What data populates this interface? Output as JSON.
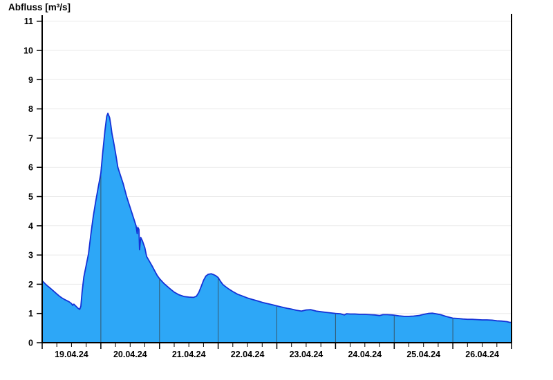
{
  "page": {
    "title": "Abfluss [m³/s]"
  },
  "colors": {
    "background": "#FFFFFF",
    "fill": "#2DA7F7",
    "stroke": "#1432D7",
    "grid": "#EAEAEA",
    "axis": "#000000",
    "day_separator": "#35566A"
  },
  "chart_data": {
    "type": "area",
    "title": "Abfluss [m³/s]",
    "ylabel": "Abfluss [m³/s]",
    "unit": "m³/s",
    "ylim": [
      0,
      11
    ],
    "yticks": [
      0,
      1,
      2,
      3,
      4,
      5,
      6,
      7,
      8,
      9,
      10,
      11
    ],
    "x_range_days": [
      0,
      8
    ],
    "x_days": [
      "19.04.24",
      "20.04.24",
      "21.04.24",
      "22.04.24",
      "23.04.24",
      "24.04.24",
      "25.04.24",
      "26.04.24"
    ],
    "minor_ticks_per_day": 4,
    "grid": "horizontal",
    "legend": "none",
    "day_separators": [
      1,
      2,
      3,
      4,
      5,
      6,
      7
    ],
    "series": [
      {
        "name": "Abfluss",
        "points": [
          [
            0.0,
            2.12
          ],
          [
            0.04,
            2.04
          ],
          [
            0.08,
            1.96
          ],
          [
            0.13,
            1.88
          ],
          [
            0.17,
            1.81
          ],
          [
            0.21,
            1.74
          ],
          [
            0.25,
            1.67
          ],
          [
            0.29,
            1.6
          ],
          [
            0.33,
            1.54
          ],
          [
            0.38,
            1.48
          ],
          [
            0.42,
            1.44
          ],
          [
            0.46,
            1.4
          ],
          [
            0.5,
            1.34
          ],
          [
            0.52,
            1.28
          ],
          [
            0.54,
            1.32
          ],
          [
            0.58,
            1.24
          ],
          [
            0.61,
            1.18
          ],
          [
            0.64,
            1.14
          ],
          [
            0.66,
            1.25
          ],
          [
            0.68,
            1.72
          ],
          [
            0.71,
            2.25
          ],
          [
            0.75,
            2.65
          ],
          [
            0.79,
            3.05
          ],
          [
            0.83,
            3.7
          ],
          [
            0.87,
            4.3
          ],
          [
            0.91,
            4.8
          ],
          [
            0.95,
            5.25
          ],
          [
            1.0,
            5.8
          ],
          [
            1.03,
            6.45
          ],
          [
            1.07,
            7.25
          ],
          [
            1.1,
            7.75
          ],
          [
            1.12,
            7.85
          ],
          [
            1.15,
            7.7
          ],
          [
            1.17,
            7.45
          ],
          [
            1.19,
            7.15
          ],
          [
            1.21,
            6.95
          ],
          [
            1.25,
            6.5
          ],
          [
            1.29,
            6.0
          ],
          [
            1.33,
            5.75
          ],
          [
            1.38,
            5.45
          ],
          [
            1.44,
            5.0
          ],
          [
            1.48,
            4.75
          ],
          [
            1.52,
            4.5
          ],
          [
            1.56,
            4.25
          ],
          [
            1.6,
            4.0
          ],
          [
            1.62,
            3.73
          ],
          [
            1.63,
            3.95
          ],
          [
            1.65,
            3.88
          ],
          [
            1.66,
            3.18
          ],
          [
            1.68,
            3.6
          ],
          [
            1.71,
            3.48
          ],
          [
            1.75,
            3.25
          ],
          [
            1.78,
            2.95
          ],
          [
            1.83,
            2.78
          ],
          [
            1.88,
            2.6
          ],
          [
            1.92,
            2.45
          ],
          [
            1.96,
            2.3
          ],
          [
            2.0,
            2.19
          ],
          [
            2.08,
            2.02
          ],
          [
            2.17,
            1.86
          ],
          [
            2.25,
            1.73
          ],
          [
            2.33,
            1.64
          ],
          [
            2.42,
            1.58
          ],
          [
            2.5,
            1.56
          ],
          [
            2.58,
            1.55
          ],
          [
            2.63,
            1.59
          ],
          [
            2.67,
            1.72
          ],
          [
            2.71,
            1.92
          ],
          [
            2.75,
            2.13
          ],
          [
            2.79,
            2.28
          ],
          [
            2.83,
            2.34
          ],
          [
            2.88,
            2.36
          ],
          [
            2.92,
            2.33
          ],
          [
            2.96,
            2.29
          ],
          [
            3.0,
            2.23
          ],
          [
            3.04,
            2.1
          ],
          [
            3.08,
            1.99
          ],
          [
            3.13,
            1.91
          ],
          [
            3.17,
            1.85
          ],
          [
            3.25,
            1.75
          ],
          [
            3.33,
            1.66
          ],
          [
            3.42,
            1.59
          ],
          [
            3.5,
            1.53
          ],
          [
            3.58,
            1.48
          ],
          [
            3.67,
            1.43
          ],
          [
            3.75,
            1.38
          ],
          [
            3.83,
            1.34
          ],
          [
            3.92,
            1.3
          ],
          [
            4.0,
            1.26
          ],
          [
            4.08,
            1.22
          ],
          [
            4.17,
            1.18
          ],
          [
            4.25,
            1.15
          ],
          [
            4.33,
            1.11
          ],
          [
            4.42,
            1.08
          ],
          [
            4.5,
            1.12
          ],
          [
            4.58,
            1.13
          ],
          [
            4.67,
            1.08
          ],
          [
            4.75,
            1.06
          ],
          [
            4.83,
            1.04
          ],
          [
            4.92,
            1.02
          ],
          [
            5.0,
            1.0
          ],
          [
            5.08,
            0.99
          ],
          [
            5.15,
            0.95
          ],
          [
            5.19,
            0.99
          ],
          [
            5.25,
            0.98
          ],
          [
            5.33,
            0.98
          ],
          [
            5.42,
            0.97
          ],
          [
            5.5,
            0.97
          ],
          [
            5.58,
            0.96
          ],
          [
            5.67,
            0.95
          ],
          [
            5.75,
            0.93
          ],
          [
            5.81,
            0.96
          ],
          [
            5.88,
            0.96
          ],
          [
            5.96,
            0.95
          ],
          [
            6.0,
            0.94
          ],
          [
            6.08,
            0.92
          ],
          [
            6.17,
            0.9
          ],
          [
            6.25,
            0.9
          ],
          [
            6.33,
            0.91
          ],
          [
            6.42,
            0.93
          ],
          [
            6.5,
            0.97
          ],
          [
            6.58,
            1.0
          ],
          [
            6.65,
            1.01
          ],
          [
            6.71,
            0.99
          ],
          [
            6.79,
            0.96
          ],
          [
            6.88,
            0.9
          ],
          [
            6.96,
            0.86
          ],
          [
            7.0,
            0.84
          ],
          [
            7.08,
            0.83
          ],
          [
            7.17,
            0.81
          ],
          [
            7.25,
            0.8
          ],
          [
            7.33,
            0.8
          ],
          [
            7.42,
            0.79
          ],
          [
            7.5,
            0.78
          ],
          [
            7.58,
            0.78
          ],
          [
            7.67,
            0.77
          ],
          [
            7.75,
            0.75
          ],
          [
            7.83,
            0.74
          ],
          [
            7.92,
            0.72
          ],
          [
            7.96,
            0.7
          ],
          [
            8.0,
            0.69
          ]
        ]
      }
    ]
  }
}
